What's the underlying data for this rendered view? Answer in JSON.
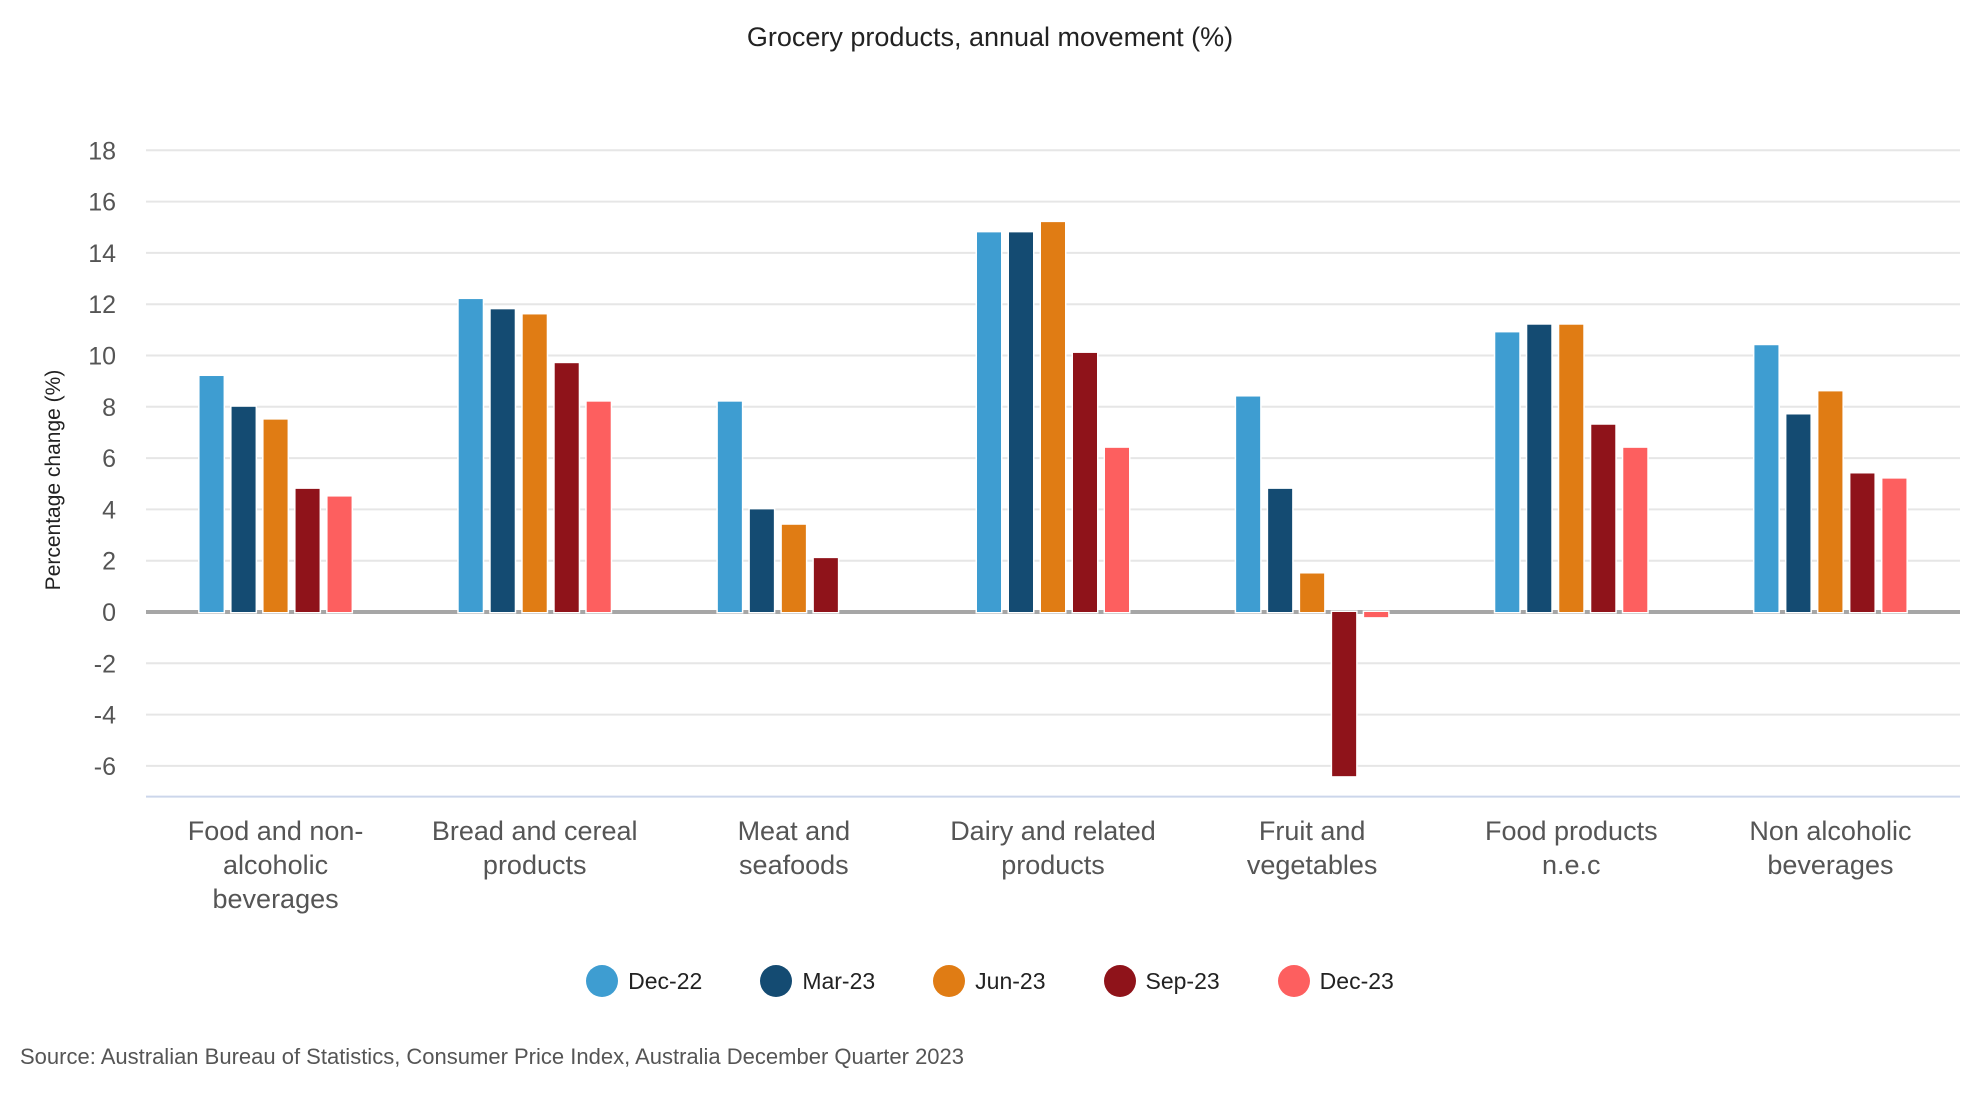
{
  "chart_data": {
    "type": "bar",
    "title": "Grocery products, annual movement (%)",
    "xlabel": "",
    "ylabel": "Percentage change (%)",
    "ylim": [
      -7.2,
      18
    ],
    "yticks": [
      18,
      16,
      14,
      12,
      10,
      8,
      6,
      4,
      2,
      0,
      -2,
      -4,
      -6
    ],
    "grid": true,
    "legend_position": "bottom",
    "categories": [
      "Food and non-alcoholic beverages",
      "Bread and cereal products",
      "Meat and seafoods",
      "Dairy and related products",
      "Fruit and vegetables",
      "Food products n.e.c",
      "Non alcoholic beverages"
    ],
    "category_label_lines": [
      [
        "Food and non-",
        "alcoholic",
        "beverages"
      ],
      [
        "Bread and cereal",
        "products"
      ],
      [
        "Meat and",
        "seafoods"
      ],
      [
        "Dairy and related",
        "products"
      ],
      [
        "Fruit and",
        "vegetables"
      ],
      [
        "Food products",
        "n.e.c"
      ],
      [
        "Non alcoholic",
        "beverages"
      ]
    ],
    "series": [
      {
        "name": "Dec-22",
        "color": "#3e9dd1",
        "values": [
          9.2,
          12.2,
          8.2,
          14.8,
          8.4,
          10.9,
          10.4
        ]
      },
      {
        "name": "Mar-23",
        "color": "#144b72",
        "values": [
          8.0,
          11.8,
          4.0,
          14.8,
          4.8,
          11.2,
          7.7
        ]
      },
      {
        "name": "Jun-23",
        "color": "#e07c14",
        "values": [
          7.5,
          11.6,
          3.4,
          15.2,
          1.5,
          11.2,
          8.6
        ]
      },
      {
        "name": "Sep-23",
        "color": "#8f131a",
        "values": [
          4.8,
          9.7,
          2.1,
          10.1,
          -6.4,
          7.3,
          5.4
        ]
      },
      {
        "name": "Dec-23",
        "color": "#fd5f5f",
        "values": [
          4.5,
          8.2,
          0.0,
          6.4,
          -0.2,
          6.4,
          5.2
        ]
      }
    ]
  },
  "source": "Source: Australian Bureau of Statistics, Consumer Price Index, Australia December Quarter 2023"
}
